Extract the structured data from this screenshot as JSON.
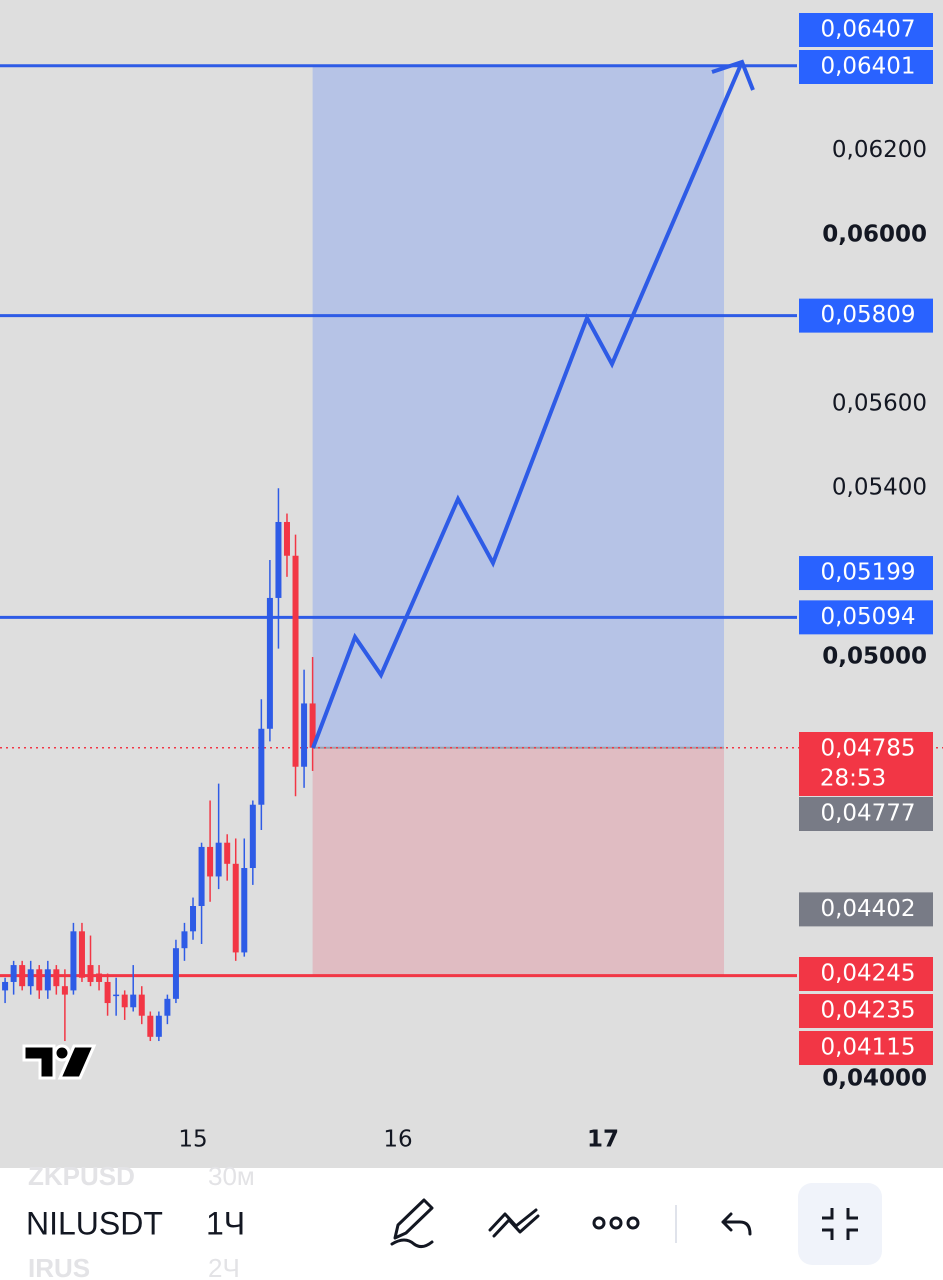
{
  "chart": {
    "type": "candlestick",
    "xlim": [
      14.0585,
      17.946
    ],
    "xticks": [
      15,
      16,
      17
    ],
    "ylim": [
      0.0391,
      0.0656
    ],
    "yticks": [
      {
        "value": 0.062,
        "label": "0,06200"
      },
      {
        "value": 0.06,
        "label": "0,06000"
      },
      {
        "value": 0.056,
        "label": "0,05600"
      },
      {
        "value": 0.054,
        "label": "0,05400"
      },
      {
        "value": 0.05,
        "label": "0,05000"
      },
      {
        "value": 0.04,
        "label": "0,04000"
      }
    ],
    "up_color": "#2e5be6",
    "down_color": "#f23645",
    "candles": {
      "x": [
        14.0833,
        14.125,
        14.1667,
        14.2083,
        14.25,
        14.2917,
        14.3333,
        14.375,
        14.4167,
        14.4583,
        14.5,
        14.5417,
        14.5833,
        14.625,
        14.6667,
        14.7083,
        14.75,
        14.7917,
        14.8333,
        14.875,
        14.9167,
        14.9583,
        15,
        15.0417,
        15.0833,
        15.125,
        15.1667,
        15.2083,
        15.25,
        15.2917,
        15.3333,
        15.375,
        15.4167,
        15.4583,
        15.5,
        15.5417,
        15.5833
      ],
      "open": [
        0.0421,
        0.0423,
        0.0427,
        0.0422,
        0.0426,
        0.0421,
        0.0426,
        0.0422,
        0.0421,
        0.0435,
        0.0427,
        0.0425,
        0.0423,
        0.042,
        0.042,
        0.0417,
        0.042,
        0.0415,
        0.041,
        0.0415,
        0.0419,
        0.0431,
        0.0435,
        0.0441,
        0.0455,
        0.0448,
        0.0456,
        0.0451,
        0.043,
        0.045,
        0.0465,
        0.0483,
        0.0514,
        0.0532,
        0.0524,
        0.0474,
        0.0489
      ],
      "high": [
        0.0424,
        0.0428,
        0.0428,
        0.0428,
        0.0427,
        0.0428,
        0.0427,
        0.0426,
        0.0437,
        0.0437,
        0.0434,
        0.0427,
        0.0425,
        0.0424,
        0.0421,
        0.0427,
        0.0422,
        0.0416,
        0.0416,
        0.042,
        0.0433,
        0.0437,
        0.0443,
        0.0456,
        0.0466,
        0.047,
        0.0458,
        0.0457,
        0.0457,
        0.0466,
        0.049,
        0.0523,
        0.054,
        0.0534,
        0.0529,
        0.0497,
        0.05
      ],
      "low": [
        0.0418,
        0.042,
        0.0421,
        0.042,
        0.0419,
        0.0419,
        0.042,
        0.0409,
        0.042,
        0.0423,
        0.0422,
        0.0421,
        0.0415,
        0.0415,
        0.0414,
        0.0416,
        0.0413,
        0.0409,
        0.0409,
        0.0413,
        0.0418,
        0.0428,
        0.0433,
        0.0432,
        0.0442,
        0.0445,
        0.0447,
        0.0428,
        0.0429,
        0.0446,
        0.0459,
        0.048,
        0.0502,
        0.0519,
        0.0467,
        0.0469,
        0.0473
      ],
      "close": [
        0.0423,
        0.0427,
        0.0422,
        0.0426,
        0.0421,
        0.0426,
        0.0422,
        0.042,
        0.0435,
        0.0424,
        0.0423,
        0.0423,
        0.0418,
        0.042,
        0.0417,
        0.042,
        0.0415,
        0.041,
        0.0415,
        0.0419,
        0.0431,
        0.0435,
        0.0441,
        0.0455,
        0.0448,
        0.0456,
        0.0451,
        0.043,
        0.045,
        0.0465,
        0.0483,
        0.0514,
        0.0532,
        0.0524,
        0.0474,
        0.0489,
        0.04785
      ]
    },
    "levels": [
      {
        "value": 0.06401,
        "color": "#2e5be6"
      },
      {
        "value": 0.05809,
        "color": "#2e5be6"
      },
      {
        "value": 0.05094,
        "color": "#2e5be6"
      },
      {
        "value": 0.04245,
        "color": "#f23645"
      }
    ],
    "current_price": 0.04785,
    "position": {
      "start": 15.5833,
      "end": 17.59,
      "entry": 0.04785,
      "target": 0.06401,
      "stop": 0.04245
    },
    "price_labels": [
      {
        "value": 0.06407,
        "label": "0,06407",
        "color": "#2962ff"
      },
      {
        "value": 0.06401,
        "label": "0,06401",
        "color": "#2962ff"
      },
      {
        "value": 0.05809,
        "label": "0,05809",
        "color": "#2962ff"
      },
      {
        "value": 0.05199,
        "label": "0,05199",
        "color": "#2962ff"
      },
      {
        "value": 0.05094,
        "label": "0,05094",
        "color": "#2962ff"
      },
      {
        "value": 0.04785,
        "label": "0,04785",
        "color": "#f23645"
      },
      {
        "value": 0.04777,
        "label": "0,04777",
        "color": "#787b86"
      },
      {
        "value": 0.04402,
        "label": "0,04402",
        "color": "#787b86"
      },
      {
        "value": 0.04245,
        "label": "0,04245",
        "color": "#f23645"
      },
      {
        "value": 0.04235,
        "label": "0,04235",
        "color": "#f23645"
      },
      {
        "value": 0.04115,
        "label": "0,04115",
        "color": "#f23645"
      }
    ],
    "countdown": "28:53"
  },
  "toolbar": {
    "symbol": "NILUSDT",
    "interval": "1Ч",
    "prev_symbol": "ZKPUSD",
    "prev_interval": "30м",
    "next_symbol": "IRUS",
    "next_interval": "2Ч"
  }
}
